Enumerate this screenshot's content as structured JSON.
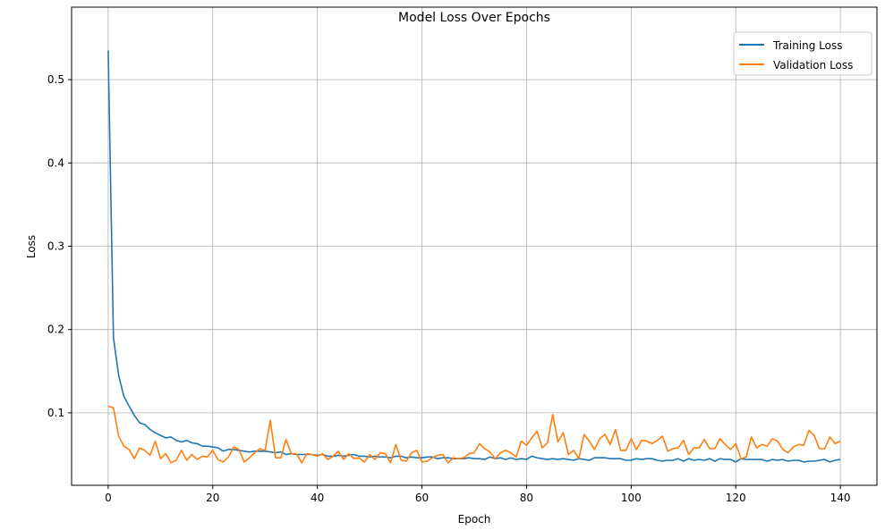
{
  "chart_data": {
    "type": "line",
    "title": "Model Loss Over Epochs",
    "xlabel": "Epoch",
    "ylabel": "Loss",
    "xlim": [
      -7,
      147
    ],
    "ylim": [
      0.013,
      0.587
    ],
    "xticks": [
      0,
      20,
      40,
      60,
      80,
      100,
      120,
      140
    ],
    "yticks": [
      0.1,
      0.2,
      0.3,
      0.4,
      0.5
    ],
    "ytick_labels": [
      "0.1",
      "0.2",
      "0.3",
      "0.4",
      "0.5"
    ],
    "grid": true,
    "legend_position": "top-right",
    "series": [
      {
        "name": "Training Loss",
        "color": "#1f77b4",
        "values": [
          0.535,
          0.19,
          0.145,
          0.12,
          0.108,
          0.097,
          0.088,
          0.086,
          0.08,
          0.076,
          0.073,
          0.07,
          0.071,
          0.067,
          0.065,
          0.067,
          0.064,
          0.063,
          0.06,
          0.06,
          0.059,
          0.058,
          0.054,
          0.056,
          0.056,
          0.055,
          0.054,
          0.053,
          0.054,
          0.054,
          0.054,
          0.053,
          0.052,
          0.053,
          0.05,
          0.051,
          0.05,
          0.05,
          0.05,
          0.05,
          0.049,
          0.05,
          0.048,
          0.048,
          0.049,
          0.048,
          0.049,
          0.05,
          0.048,
          0.048,
          0.047,
          0.048,
          0.047,
          0.047,
          0.046,
          0.048,
          0.048,
          0.046,
          0.047,
          0.046,
          0.046,
          0.047,
          0.047,
          0.045,
          0.046,
          0.046,
          0.045,
          0.045,
          0.045,
          0.046,
          0.045,
          0.045,
          0.044,
          0.047,
          0.045,
          0.046,
          0.044,
          0.046,
          0.044,
          0.045,
          0.044,
          0.048,
          0.046,
          0.045,
          0.044,
          0.045,
          0.044,
          0.045,
          0.044,
          0.043,
          0.045,
          0.044,
          0.043,
          0.046,
          0.046,
          0.046,
          0.045,
          0.045,
          0.045,
          0.043,
          0.043,
          0.045,
          0.044,
          0.045,
          0.045,
          0.043,
          0.042,
          0.043,
          0.043,
          0.045,
          0.042,
          0.045,
          0.043,
          0.044,
          0.043,
          0.045,
          0.042,
          0.045,
          0.044,
          0.044,
          0.041,
          0.045,
          0.044,
          0.044,
          0.044,
          0.044,
          0.042,
          0.044,
          0.043,
          0.044,
          0.042,
          0.043,
          0.043,
          0.041,
          0.042,
          0.042,
          0.043,
          0.044,
          0.041,
          0.043,
          0.044
        ]
      },
      {
        "name": "Validation Loss",
        "color": "#ff7f0e",
        "values": [
          0.108,
          0.106,
          0.072,
          0.06,
          0.056,
          0.045,
          0.058,
          0.055,
          0.049,
          0.066,
          0.045,
          0.051,
          0.04,
          0.043,
          0.055,
          0.043,
          0.05,
          0.044,
          0.048,
          0.047,
          0.055,
          0.044,
          0.041,
          0.047,
          0.059,
          0.056,
          0.041,
          0.046,
          0.052,
          0.057,
          0.055,
          0.091,
          0.046,
          0.046,
          0.068,
          0.051,
          0.051,
          0.04,
          0.051,
          0.05,
          0.048,
          0.051,
          0.044,
          0.048,
          0.054,
          0.044,
          0.051,
          0.045,
          0.046,
          0.041,
          0.05,
          0.044,
          0.052,
          0.051,
          0.04,
          0.062,
          0.043,
          0.042,
          0.052,
          0.055,
          0.041,
          0.042,
          0.046,
          0.049,
          0.05,
          0.04,
          0.046,
          0.045,
          0.046,
          0.051,
          0.052,
          0.063,
          0.057,
          0.053,
          0.045,
          0.052,
          0.055,
          0.052,
          0.047,
          0.066,
          0.061,
          0.07,
          0.078,
          0.058,
          0.064,
          0.098,
          0.065,
          0.076,
          0.05,
          0.055,
          0.045,
          0.074,
          0.066,
          0.056,
          0.069,
          0.074,
          0.062,
          0.08,
          0.055,
          0.055,
          0.069,
          0.056,
          0.067,
          0.066,
          0.063,
          0.067,
          0.072,
          0.054,
          0.057,
          0.058,
          0.067,
          0.05,
          0.058,
          0.058,
          0.068,
          0.057,
          0.057,
          0.069,
          0.062,
          0.056,
          0.063,
          0.045,
          0.047,
          0.071,
          0.058,
          0.062,
          0.06,
          0.069,
          0.066,
          0.056,
          0.052,
          0.059,
          0.062,
          0.061,
          0.079,
          0.073,
          0.057,
          0.057,
          0.071,
          0.063,
          0.066
        ]
      }
    ]
  }
}
